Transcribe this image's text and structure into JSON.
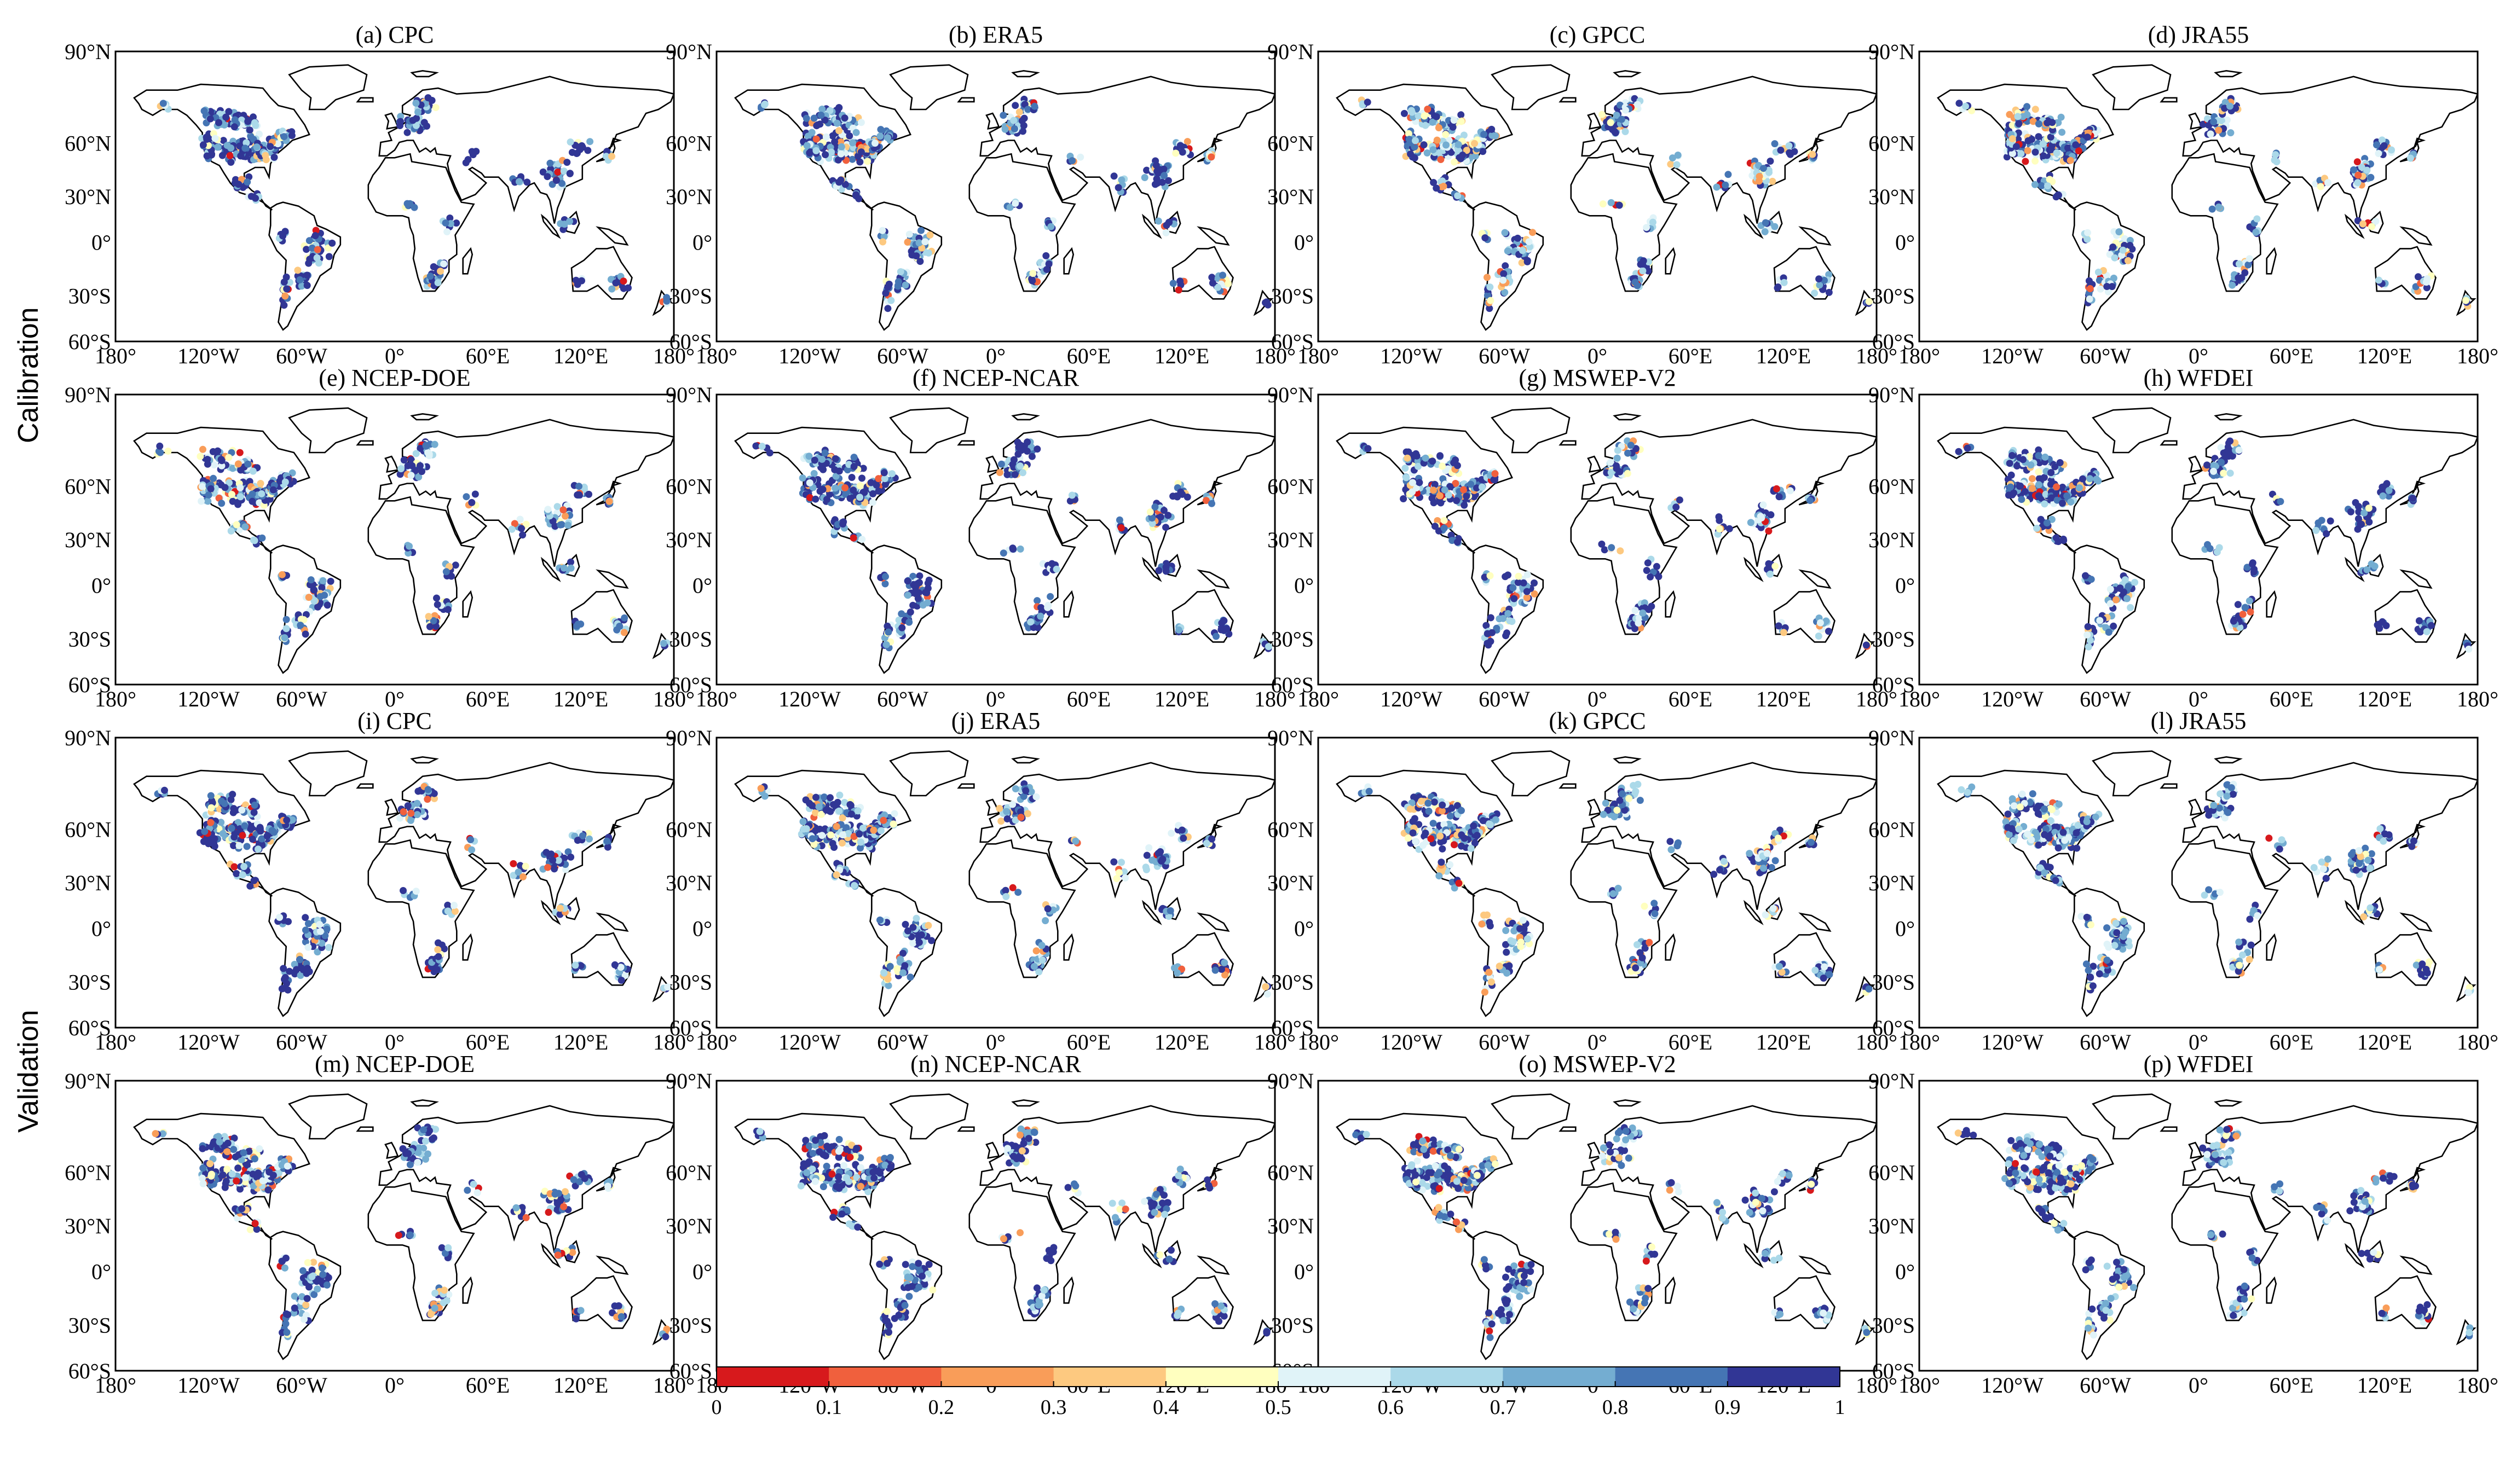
{
  "figure": {
    "row_groups": [
      "Calibration",
      "Validation"
    ],
    "lat_ticks": [
      "90°N",
      "60°N",
      "30°N",
      "0°",
      "30°S",
      "60°S"
    ],
    "lon_ticks": [
      "180°",
      "120°W",
      "60°W",
      "0°",
      "60°E",
      "120°E",
      "180°"
    ],
    "panels": [
      {
        "title": "(a) CPC"
      },
      {
        "title": "(b) ERA5"
      },
      {
        "title": "(c) GPCC"
      },
      {
        "title": "(d) JRA55"
      },
      {
        "title": "(e) NCEP-DOE"
      },
      {
        "title": "(f) NCEP-NCAR"
      },
      {
        "title": "(g) MSWEP-V2"
      },
      {
        "title": "(h) WFDEI"
      },
      {
        "title": "(i) CPC"
      },
      {
        "title": "(j) ERA5"
      },
      {
        "title": "(k) GPCC"
      },
      {
        "title": "(l) JRA55"
      },
      {
        "title": "(m) NCEP-DOE"
      },
      {
        "title": "(n) NCEP-NCAR"
      },
      {
        "title": "(o) MSWEP-V2"
      },
      {
        "title": "(p) WFDEI"
      }
    ],
    "colorbar": {
      "ticks": [
        "0",
        "0.1",
        "0.2",
        "0.3",
        "0.4",
        "0.5",
        "0.6",
        "0.7",
        "0.8",
        "0.9",
        "1"
      ],
      "colors": [
        "#d7191c",
        "#f0603d",
        "#f99d59",
        "#fdc980",
        "#ffffbf",
        "#e0f3f8",
        "#abd9e9",
        "#74add1",
        "#4575b4",
        "#313695"
      ]
    }
  }
}
